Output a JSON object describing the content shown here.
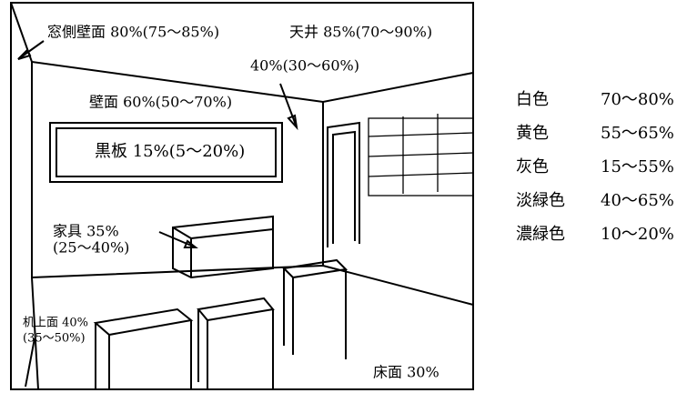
{
  "labels": {
    "window_wall": "窓側壁面 80%(75～85%)",
    "ceiling": "天井 85%(70～90%)",
    "upper_wall": "40%(30～60%)",
    "wall": "壁面 60%(50～70%)",
    "blackboard": "黒板 15%(5～20%)",
    "furniture": "家具 35%",
    "furniture_range": "(25～40%)",
    "desk_top": "机上面 40%",
    "desk_top_range": "(35～50%)",
    "floor": "床面 30%"
  },
  "legend": {
    "rows": [
      [
        "白色",
        "70～80%"
      ],
      [
        "黄色",
        "55～65%"
      ],
      [
        "灰色",
        "15～55%"
      ],
      [
        "淡緑色",
        "40～65%"
      ],
      [
        "濃緑色",
        "10～20%"
      ]
    ]
  }
}
